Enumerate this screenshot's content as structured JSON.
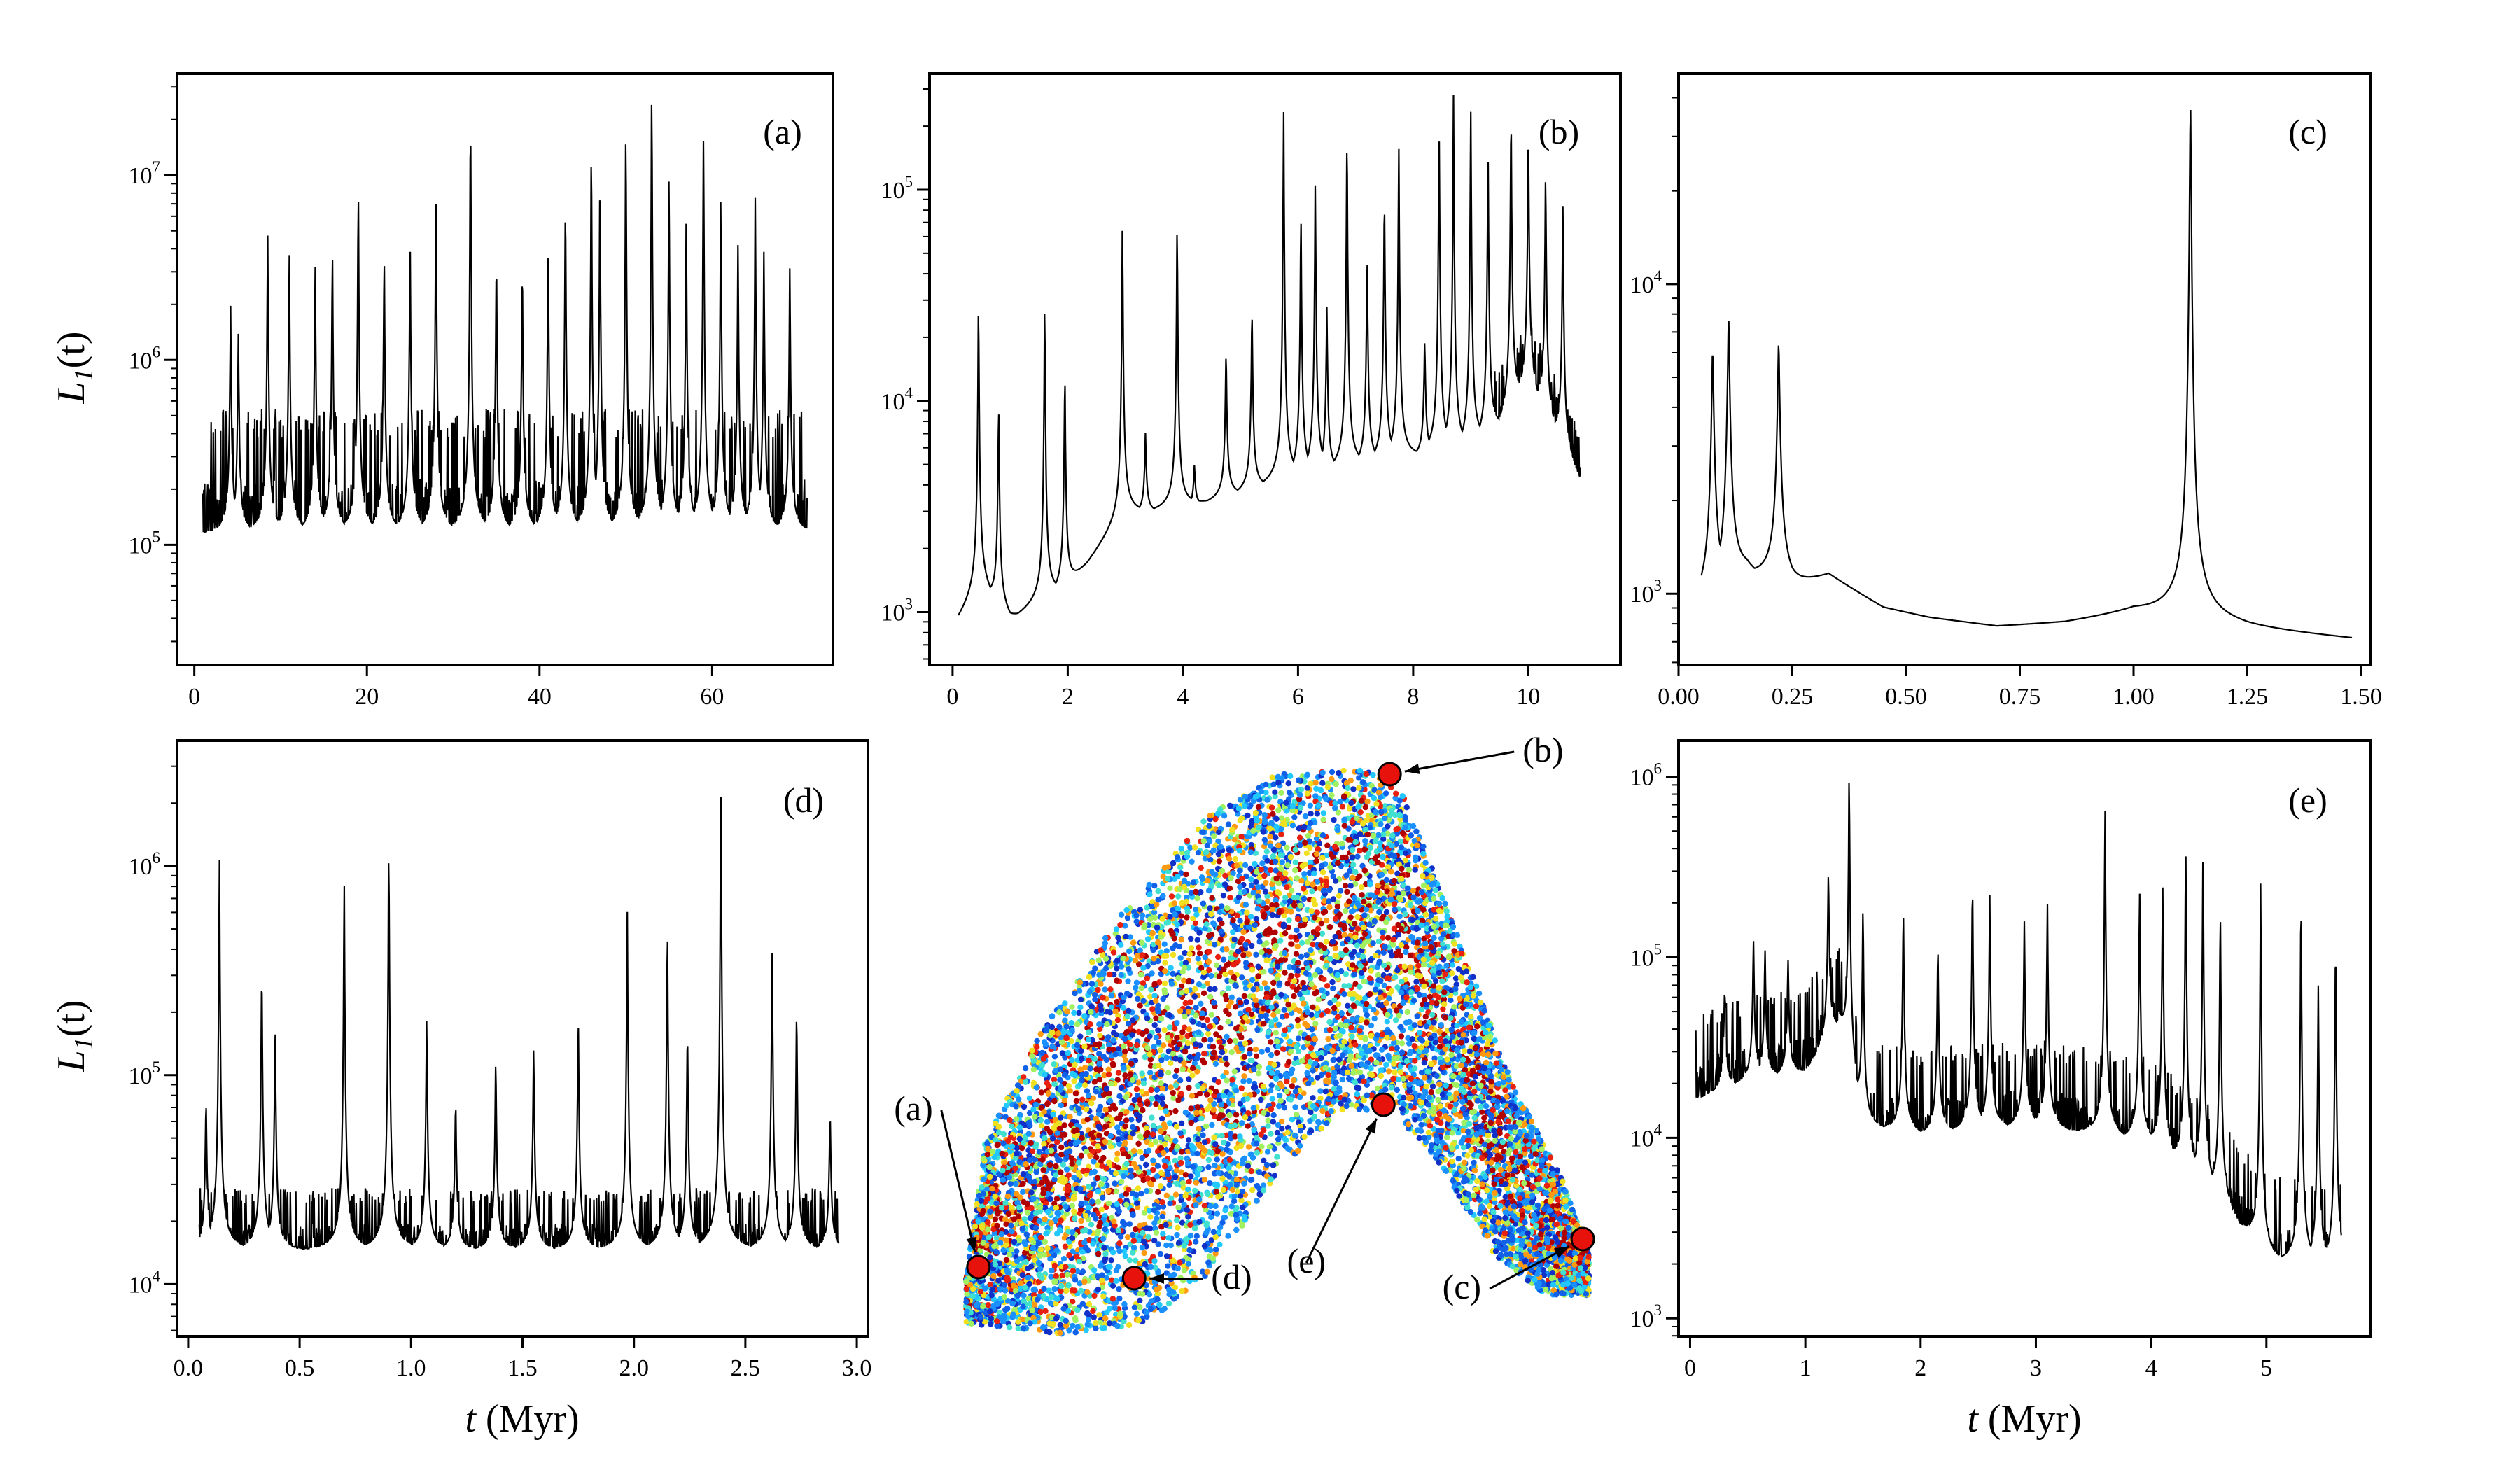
{
  "figure": {
    "ylabel_text": "L",
    "ylabel_sub": "1",
    "ylabel_arg": "(t)",
    "xlabel_t": "t",
    "xlabel_unit": "(Myr)"
  },
  "chart_data": [
    {
      "id": "a",
      "type": "line",
      "panel_label": "(a)",
      "xlim": [
        -2,
        74
      ],
      "xticks": [
        0,
        20,
        40,
        60
      ],
      "ylog": true,
      "ylim_log10": [
        4.35,
        7.55
      ],
      "yticks": [
        {
          "base": "10",
          "exp": "5",
          "log": 5
        },
        {
          "base": "10",
          "exp": "6",
          "log": 6
        },
        {
          "base": "10",
          "exp": "7",
          "log": 7
        }
      ],
      "x_range": [
        1,
        71
      ],
      "n_points": 1400,
      "baseline_log10": 5.05,
      "jitter": 0.62,
      "peaks": [
        [
          4.2,
          6.3
        ],
        [
          5.1,
          6.15
        ],
        [
          8.5,
          6.7
        ],
        [
          11,
          6.6
        ],
        [
          14,
          6.55
        ],
        [
          16,
          6.6
        ],
        [
          19,
          6.95
        ],
        [
          22,
          6.6
        ],
        [
          25,
          6.7
        ],
        [
          28,
          7.0
        ],
        [
          32,
          7.38
        ],
        [
          35,
          6.6
        ],
        [
          38,
          6.55
        ],
        [
          41,
          6.7
        ],
        [
          43,
          6.9
        ],
        [
          46,
          7.2
        ],
        [
          47,
          7.0
        ],
        [
          50,
          7.3
        ],
        [
          53,
          7.5
        ],
        [
          55,
          7.05
        ],
        [
          57,
          6.8
        ],
        [
          59,
          7.25
        ],
        [
          61,
          6.9
        ],
        [
          63,
          6.65
        ],
        [
          65,
          6.9
        ],
        [
          66,
          6.6
        ],
        [
          69,
          6.5
        ]
      ]
    },
    {
      "id": "b",
      "type": "line",
      "panel_label": "(b)",
      "xlim": [
        -0.4,
        11.6
      ],
      "xticks": [
        0,
        2,
        4,
        6,
        8,
        10
      ],
      "ylog": true,
      "ylim_log10": [
        2.75,
        5.55
      ],
      "yticks": [
        {
          "base": "10",
          "exp": "3",
          "log": 3
        },
        {
          "base": "10",
          "exp": "4",
          "log": 4
        },
        {
          "base": "10",
          "exp": "5",
          "log": 5
        }
      ],
      "x_range": [
        0.1,
        10.9
      ],
      "n_points": 1400,
      "baseline_knots": [
        [
          0.1,
          2.95
        ],
        [
          0.5,
          3.1
        ],
        [
          1.0,
          2.95
        ],
        [
          2.0,
          3.1
        ],
        [
          3.0,
          3.45
        ],
        [
          4.0,
          3.48
        ],
        [
          5.0,
          3.55
        ],
        [
          6.0,
          3.62
        ],
        [
          7.0,
          3.67
        ],
        [
          8.0,
          3.72
        ],
        [
          9.0,
          3.75
        ],
        [
          9.5,
          3.85
        ],
        [
          10.0,
          4.05
        ],
        [
          10.9,
          3.6
        ]
      ],
      "noise_from_x": 9.4,
      "peaks": [
        [
          0.45,
          4.5
        ],
        [
          0.8,
          4.0
        ],
        [
          1.6,
          4.5
        ],
        [
          1.95,
          4.15
        ],
        [
          2.95,
          4.85
        ],
        [
          3.35,
          3.85
        ],
        [
          3.9,
          4.85
        ],
        [
          4.2,
          3.7
        ],
        [
          4.75,
          4.25
        ],
        [
          5.2,
          4.45
        ],
        [
          5.75,
          5.4
        ],
        [
          6.05,
          4.9
        ],
        [
          6.3,
          5.05
        ],
        [
          6.5,
          4.45
        ],
        [
          6.85,
          5.3
        ],
        [
          7.2,
          4.7
        ],
        [
          7.5,
          5.0
        ],
        [
          7.75,
          5.2
        ],
        [
          8.2,
          4.3
        ],
        [
          8.45,
          5.35
        ],
        [
          8.7,
          5.45
        ],
        [
          9.0,
          5.4
        ],
        [
          9.3,
          5.2
        ],
        [
          9.7,
          5.4
        ],
        [
          10.0,
          5.3
        ],
        [
          10.3,
          5.1
        ],
        [
          10.6,
          4.95
        ]
      ]
    },
    {
      "id": "c",
      "type": "line",
      "panel_label": "(c)",
      "xlim": [
        0.0,
        1.52
      ],
      "xticks": [
        0.0,
        0.25,
        0.5,
        0.75,
        1.0,
        1.25,
        1.5
      ],
      "ylog": true,
      "ylim_log10": [
        2.77,
        4.68
      ],
      "yticks": [
        {
          "base": "10",
          "exp": "3",
          "log": 3
        },
        {
          "base": "10",
          "exp": "4",
          "log": 4
        }
      ],
      "x_range": [
        0.05,
        1.48
      ],
      "n_points": 1400,
      "baseline_knots": [
        [
          0.05,
          2.95
        ],
        [
          0.15,
          3.05
        ],
        [
          0.25,
          3.0
        ],
        [
          0.33,
          3.05
        ],
        [
          0.45,
          2.95
        ],
        [
          0.55,
          2.92
        ],
        [
          0.7,
          2.89
        ],
        [
          0.85,
          2.9
        ],
        [
          1.0,
          2.93
        ],
        [
          1.25,
          2.88
        ],
        [
          1.48,
          2.85
        ]
      ],
      "peaks": [
        [
          0.075,
          3.8
        ],
        [
          0.11,
          3.9
        ],
        [
          0.22,
          3.82
        ],
        [
          1.125,
          4.6
        ]
      ]
    },
    {
      "id": "d",
      "type": "line",
      "panel_label": "(d)",
      "xlim": [
        -0.05,
        3.05
      ],
      "xticks": [
        0.0,
        0.5,
        1.0,
        1.5,
        2.0,
        2.5,
        3.0
      ],
      "ylog": true,
      "ylim_log10": [
        3.75,
        6.6
      ],
      "yticks": [
        {
          "base": "10",
          "exp": "4",
          "log": 4
        },
        {
          "base": "10",
          "exp": "5",
          "log": 5
        },
        {
          "base": "10",
          "exp": "6",
          "log": 6
        }
      ],
      "x_range": [
        0.05,
        2.92
      ],
      "n_points": 1400,
      "baseline_log10": 4.15,
      "jitter": 0.28,
      "peaks": [
        [
          0.08,
          4.9
        ],
        [
          0.14,
          6.07
        ],
        [
          0.33,
          5.55
        ],
        [
          0.39,
          5.25
        ],
        [
          0.7,
          5.95
        ],
        [
          0.9,
          6.15
        ],
        [
          1.07,
          5.3
        ],
        [
          1.2,
          4.9
        ],
        [
          1.38,
          5.1
        ],
        [
          1.55,
          5.15
        ],
        [
          1.75,
          5.3
        ],
        [
          1.97,
          5.8
        ],
        [
          2.15,
          5.75
        ],
        [
          2.24,
          5.25
        ],
        [
          2.39,
          6.5
        ],
        [
          2.62,
          5.65
        ],
        [
          2.73,
          5.35
        ],
        [
          2.88,
          4.85
        ]
      ]
    },
    {
      "id": "e",
      "type": "line",
      "panel_label": "(e)",
      "xlim": [
        -0.1,
        5.9
      ],
      "xticks": [
        0,
        1,
        2,
        3,
        4,
        5
      ],
      "ylog": true,
      "ylim_log10": [
        2.9,
        6.2
      ],
      "yticks": [
        {
          "base": "10",
          "exp": "3",
          "log": 3
        },
        {
          "base": "10",
          "exp": "4",
          "log": 4
        },
        {
          "base": "10",
          "exp": "5",
          "log": 5
        },
        {
          "base": "10",
          "exp": "6",
          "log": 6
        }
      ],
      "x_range": [
        0.05,
        5.65
      ],
      "n_points": 1400,
      "baseline_knots": [
        [
          0.05,
          4.2
        ],
        [
          0.5,
          4.3
        ],
        [
          1.0,
          4.35
        ],
        [
          1.3,
          4.6
        ],
        [
          1.5,
          4.05
        ],
        [
          2.0,
          4.0
        ],
        [
          3.0,
          4.05
        ],
        [
          4.0,
          3.95
        ],
        [
          4.5,
          3.7
        ],
        [
          5.0,
          3.3
        ],
        [
          5.65,
          3.25
        ]
      ],
      "jitter": 0.45,
      "peaks": [
        [
          0.3,
          4.85
        ],
        [
          0.55,
          5.1
        ],
        [
          0.65,
          5.05
        ],
        [
          0.85,
          5.0
        ],
        [
          1.2,
          5.5
        ],
        [
          1.38,
          6.05
        ],
        [
          1.5,
          5.3
        ],
        [
          1.85,
          5.3
        ],
        [
          2.15,
          5.1
        ],
        [
          2.45,
          5.45
        ],
        [
          2.6,
          5.35
        ],
        [
          2.9,
          5.2
        ],
        [
          3.1,
          5.3
        ],
        [
          3.6,
          5.85
        ],
        [
          3.9,
          5.4
        ],
        [
          4.1,
          5.45
        ],
        [
          4.3,
          5.65
        ],
        [
          4.45,
          5.6
        ],
        [
          4.6,
          5.3
        ],
        [
          4.95,
          5.45
        ],
        [
          5.3,
          5.4
        ],
        [
          5.45,
          4.85
        ],
        [
          5.6,
          5.15
        ]
      ]
    },
    {
      "id": "map",
      "type": "scatter",
      "description_markers": [
        {
          "label": "(a)",
          "u": 0.02,
          "v": 0.1
        },
        {
          "label": "(b)",
          "u": 0.68,
          "v": 0.98
        },
        {
          "label": "(c)",
          "u": 0.99,
          "v": 0.15
        },
        {
          "label": "(d)",
          "u": 0.27,
          "v": 0.08
        },
        {
          "label": "(e)",
          "u": 0.67,
          "v": 0.39
        }
      ],
      "colors": [
        "#1030c8",
        "#1060e8",
        "#1a90ff",
        "#20c8ff",
        "#40e0d0",
        "#a0f060",
        "#f0e020",
        "#ff9a10",
        "#e82010",
        "#b00000"
      ],
      "n_points": 9000
    }
  ]
}
